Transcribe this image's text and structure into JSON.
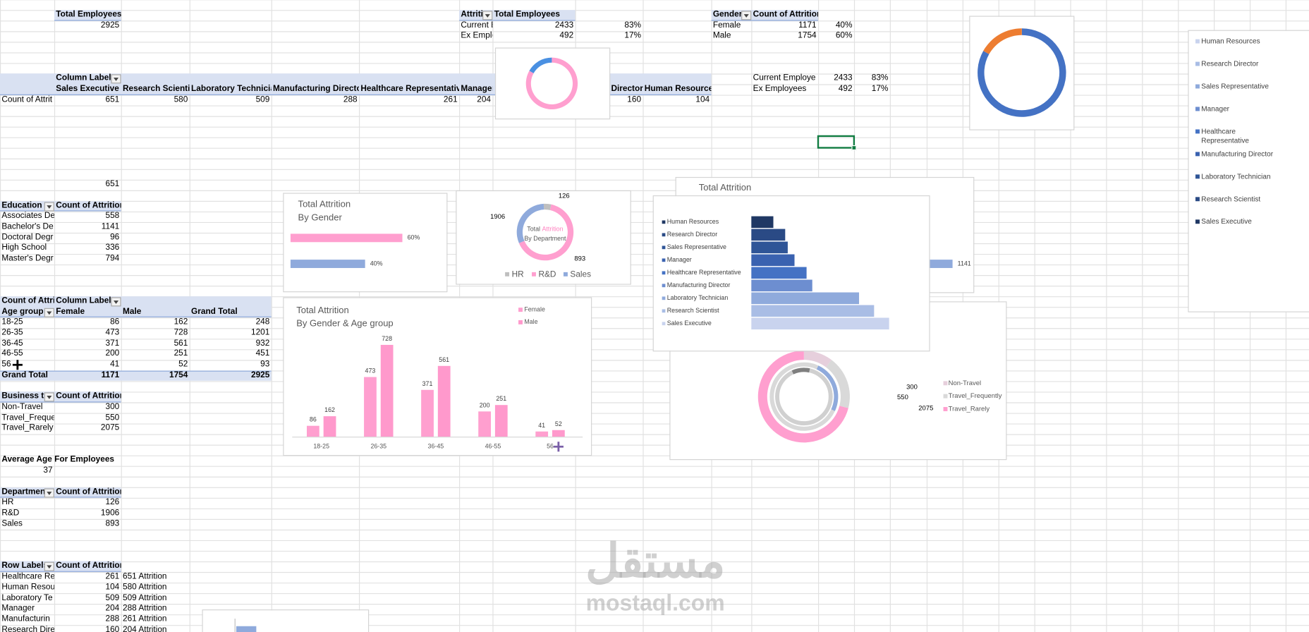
{
  "sheet": {
    "total_employees": {
      "header": [
        "Total Employees"
      ],
      "rows": [
        [
          2925
        ]
      ]
    },
    "attrition": {
      "header": [
        "Attritic",
        "Total Employees"
      ],
      "rows": [
        [
          "Current E",
          2433,
          "83%"
        ],
        [
          "Ex Emplo",
          492,
          "17%"
        ]
      ]
    },
    "gender": {
      "header": [
        "Gender",
        "Count of Attrition"
      ],
      "rows": [
        [
          "Female",
          1171,
          "40%"
        ],
        [
          "Male",
          1754,
          "60%"
        ]
      ]
    },
    "job_roles": {
      "header": [
        "Column Labels"
      ],
      "subheader": [
        "Sales Executive",
        "Research Scientist",
        "Laboratory Technician",
        "Manufacturing Director",
        "Healthcare Representative",
        "Manager",
        "Director",
        "Human Resources"
      ],
      "rows": [
        [
          "Count of Attrit",
          651,
          580,
          509,
          288,
          261,
          204,
          160,
          104
        ]
      ]
    },
    "current_ex": {
      "rows": [
        [
          "Current Employe",
          2433,
          "83%"
        ],
        [
          "Ex Employees",
          492,
          "17%"
        ]
      ]
    },
    "stray_value": 651,
    "education": {
      "header": [
        "Education",
        "Count of Attrition"
      ],
      "rows": [
        [
          "Associates De",
          558
        ],
        [
          "Bachelor's De",
          1141
        ],
        [
          "Doctoral Degr",
          96
        ],
        [
          "High School",
          336
        ],
        [
          "Master's Degr",
          794
        ]
      ]
    },
    "age_group": {
      "header": [
        "Count of Attriti",
        "Column Labels"
      ],
      "subheader": [
        "Age group",
        "Female",
        "Male",
        "Grand Total"
      ],
      "rows": [
        [
          "18-25",
          86,
          162,
          248
        ],
        [
          "26-35",
          473,
          728,
          1201
        ],
        [
          "36-45",
          371,
          561,
          932
        ],
        [
          "46-55",
          200,
          251,
          451
        ],
        [
          "56",
          41,
          52,
          93
        ]
      ],
      "total": [
        "Grand Total",
        1171,
        1754,
        2925
      ]
    },
    "business_travel": {
      "header": [
        "Business tra",
        "Count of Attrition"
      ],
      "rows": [
        [
          "Non-Travel",
          300
        ],
        [
          "Travel_Freque",
          550
        ],
        [
          "Travel_Rarely",
          2075
        ]
      ]
    },
    "average_age": {
      "header": "Average Age For Employees",
      "value": 37
    },
    "department": {
      "header": [
        "Department",
        "Count of Attrition"
      ],
      "rows": [
        [
          "HR",
          126
        ],
        [
          "R&D",
          1906
        ],
        [
          "Sales",
          893
        ]
      ]
    },
    "row_labels": {
      "header": [
        "Row Labels",
        "Count of Attrition"
      ],
      "rows": [
        [
          "Healthcare Re",
          261,
          "651 Attrition"
        ],
        [
          "Human Resou",
          104,
          "580 Attrition"
        ],
        [
          "Laboratory Te",
          509,
          "509 Attrition"
        ],
        [
          "Manager",
          204,
          "288 Attrition"
        ],
        [
          "Manufacturin",
          288,
          "261 Attrition"
        ],
        [
          "Research Dire",
          160,
          "204 Attrition"
        ]
      ]
    }
  },
  "chart_data": [
    {
      "type": "donut",
      "values": [
        2433,
        492
      ],
      "colors": [
        "#ff9fcf",
        "#4a90e2"
      ]
    },
    {
      "type": "donut",
      "values": [
        2433,
        492
      ],
      "colors": [
        "#4472c4",
        "#ed7d31"
      ]
    },
    {
      "type": "legend",
      "categories": [
        "Human Resources",
        "Research Director",
        "Sales Representative",
        "Manager",
        "Healthcare Representative",
        "Manufacturing Director",
        "Laboratory Technician",
        "Research Scientist",
        "Sales Executive"
      ],
      "colors": [
        "#c9d3ee",
        "#a9bde5",
        "#8faadc",
        "#6d8ed0",
        "#4472c4",
        "#3a62b0",
        "#2f5597",
        "#2a4a85",
        "#203864"
      ]
    },
    {
      "type": "hbar",
      "title": "Total Attrition",
      "subtitle": "By Gender",
      "values": [
        60,
        40
      ],
      "value_labels": [
        "60%",
        "40%"
      ],
      "colors": [
        "#ff9fcf",
        "#8faadc"
      ]
    },
    {
      "type": "donut",
      "title": "Total",
      "title_highlight": "Attrition",
      "subtitle": "By Department",
      "categories": [
        "HR",
        "R&D",
        "Sales"
      ],
      "values": [
        126,
        1906,
        893
      ],
      "colors": [
        "#bfbfbf",
        "#ff9fcf",
        "#8faadc"
      ]
    },
    {
      "type": "column",
      "title": "Total Attrition",
      "subtitle": "By Gender  & Age group",
      "categories": [
        "18-25",
        "26-35",
        "36-45",
        "46-55",
        "56"
      ],
      "series": [
        {
          "name": "Female",
          "color": "#ff9fcf",
          "values": [
            86,
            473,
            371,
            200,
            41
          ]
        },
        {
          "name": "Male",
          "color": "#ff99cc",
          "values": [
            162,
            728,
            561,
            251,
            52
          ]
        }
      ]
    },
    {
      "type": "hbar",
      "title": "Total Attrition",
      "values": [
        1141
      ],
      "colors": [
        "#8faadc"
      ]
    },
    {
      "type": "hbar",
      "categories": [
        "Human Resources",
        "Research Director",
        "Sales Representative",
        "Manager",
        "Healthcare Representative",
        "Manufacturing Director",
        "Laboratory Technician",
        "Research Scientist",
        "Sales Executive"
      ],
      "values": [
        104,
        160,
        172,
        204,
        261,
        288,
        509,
        580,
        651
      ],
      "colors": [
        "#203864",
        "#2a4a85",
        "#2f5597",
        "#3a62b0",
        "#4472c4",
        "#6d8ed0",
        "#8faadc",
        "#a9bde5",
        "#c9d3ee"
      ]
    },
    {
      "type": "donut",
      "categories": [
        "Non-Travel",
        "Travel_Frequently",
        "Travel_Rarely"
      ],
      "values": [
        300,
        550,
        2075
      ],
      "colors": [
        "#e6cfdc",
        "#d9d9d9",
        "#ff9fcf"
      ]
    }
  ],
  "watermark": {
    "arabic": "مستقل",
    "latin": "mostaql.com"
  }
}
